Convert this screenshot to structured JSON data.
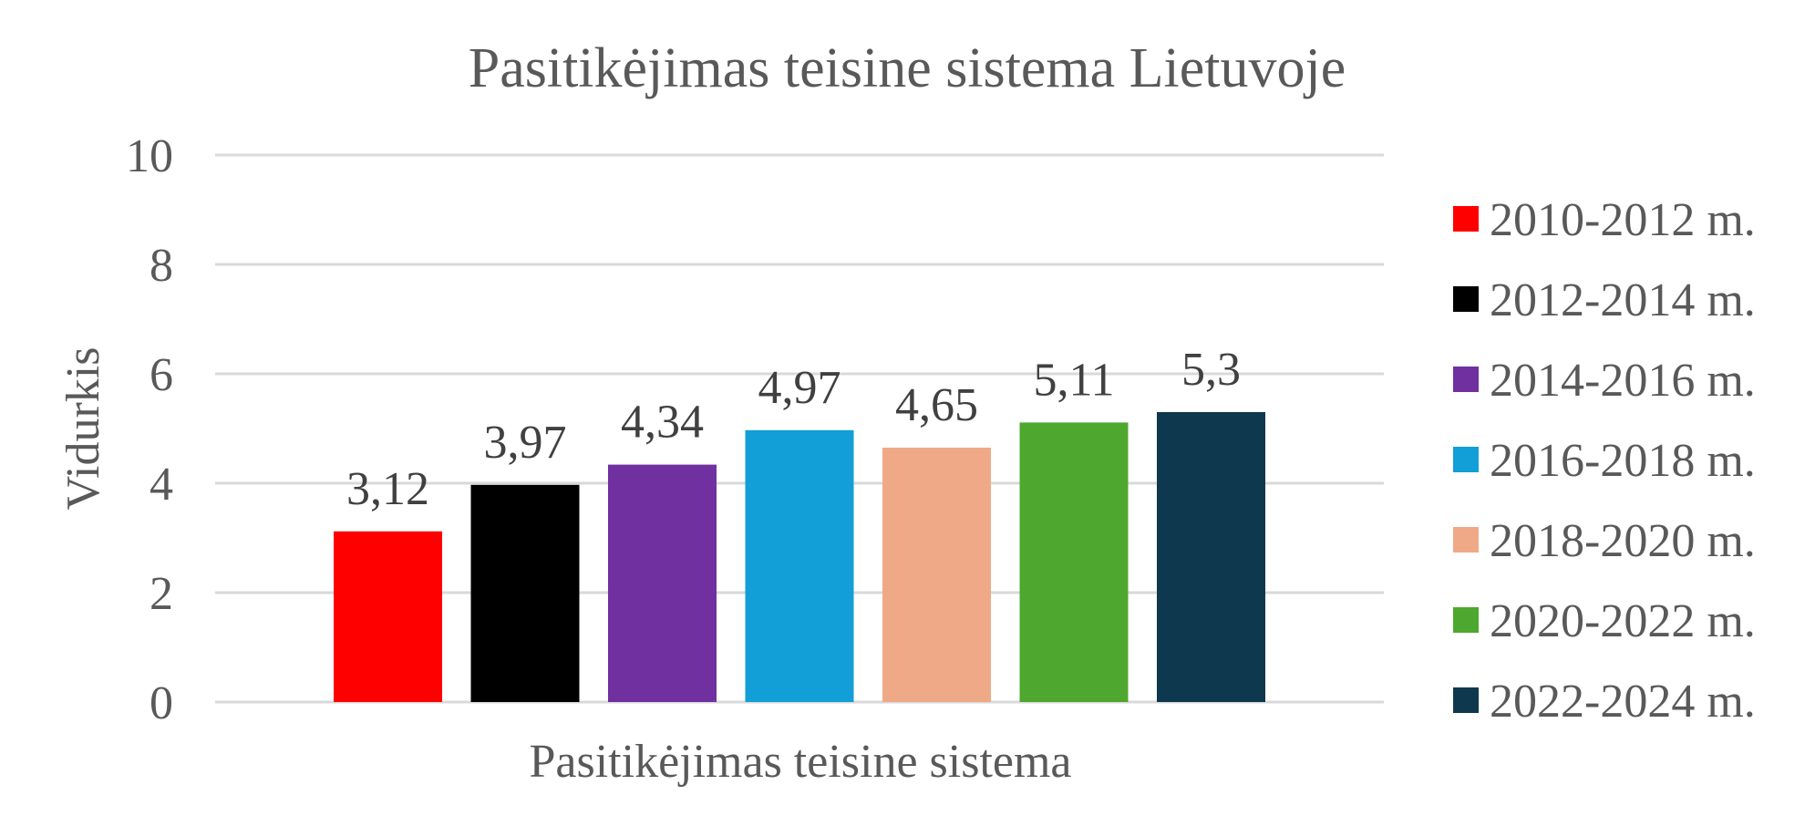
{
  "chart_data": {
    "type": "bar",
    "title": "Pasitikėjimas teisine sistema Lietuvoje",
    "xlabel": "Pasitikėjimas teisine sistema",
    "ylabel": "Vidurkis",
    "ylim": [
      0,
      10
    ],
    "yticks": [
      "0",
      "2",
      "4",
      "6",
      "8",
      "10"
    ],
    "grid": true,
    "legend_position": "right",
    "categories": [
      "Pasitikėjimas teisine sistema"
    ],
    "series": [
      {
        "name": "2010-2012 m.",
        "values": [
          3.12
        ],
        "label": "3,12",
        "color": "#ff0000"
      },
      {
        "name": "2012-2014 m.",
        "values": [
          3.97
        ],
        "label": "3,97",
        "color": "#000000"
      },
      {
        "name": "2014-2016 m.",
        "values": [
          4.34
        ],
        "label": "4,34",
        "color": "#7030a0"
      },
      {
        "name": "2016-2018 m.",
        "values": [
          4.97
        ],
        "label": "4,97",
        "color": "#129ed6"
      },
      {
        "name": "2018-2020 m.",
        "values": [
          4.65
        ],
        "label": "4,65",
        "color": "#f0a986"
      },
      {
        "name": "2020-2022 m.",
        "values": [
          5.11
        ],
        "label": "5,11",
        "color": "#4ea72e"
      },
      {
        "name": "2022-2024 m.",
        "values": [
          5.3
        ],
        "label": "5,3",
        "color": "#0e384e"
      }
    ]
  }
}
